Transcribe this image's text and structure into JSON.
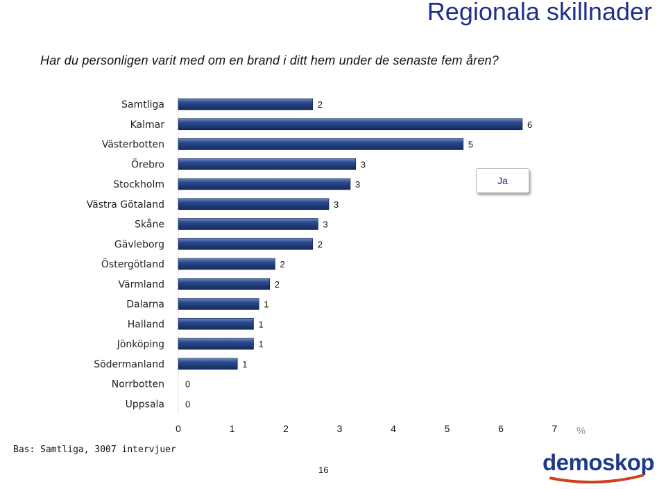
{
  "title": "Regionala skillnader",
  "subtitle": "Har du personligen varit med om en brand i ditt hem under de senaste fem åren?",
  "legend": {
    "label": "Ja"
  },
  "base_note": "Bas: Samtliga, 3007 intervjuer",
  "page_number": "16",
  "logo_text": "demoskop",
  "colors": {
    "bar": "#1f3a78",
    "bar_highlight": "#5f79b5",
    "title": "#1f2f8f"
  },
  "chart_data": {
    "type": "bar",
    "orientation": "horizontal",
    "categories": [
      "Samtliga",
      "Kalmar",
      "Västerbotten",
      "Örebro",
      "Stockholm",
      "Västra Götaland",
      "Skåne",
      "Gävleborg",
      "Östergötland",
      "Värmland",
      "Dalarna",
      "Halland",
      "Jönköping",
      "Södermanland",
      "Norrbotten",
      "Uppsala"
    ],
    "series": [
      {
        "name": "Ja",
        "values": [
          2.5,
          6.4,
          5.3,
          3.3,
          3.2,
          2.8,
          2.6,
          2.5,
          1.8,
          1.7,
          1.5,
          1.4,
          1.4,
          1.1,
          0,
          0
        ],
        "labels": [
          "2",
          "6",
          "5",
          "3",
          "3",
          "3",
          "3",
          "2",
          "2",
          "2",
          "1",
          "1",
          "1",
          "1",
          "0",
          "0"
        ]
      }
    ],
    "xlim": [
      0,
      7
    ],
    "xticks": [
      "0",
      "1",
      "2",
      "3",
      "4",
      "5",
      "6",
      "7"
    ],
    "unit_label": "%",
    "grid": false,
    "legend_position": "right"
  }
}
